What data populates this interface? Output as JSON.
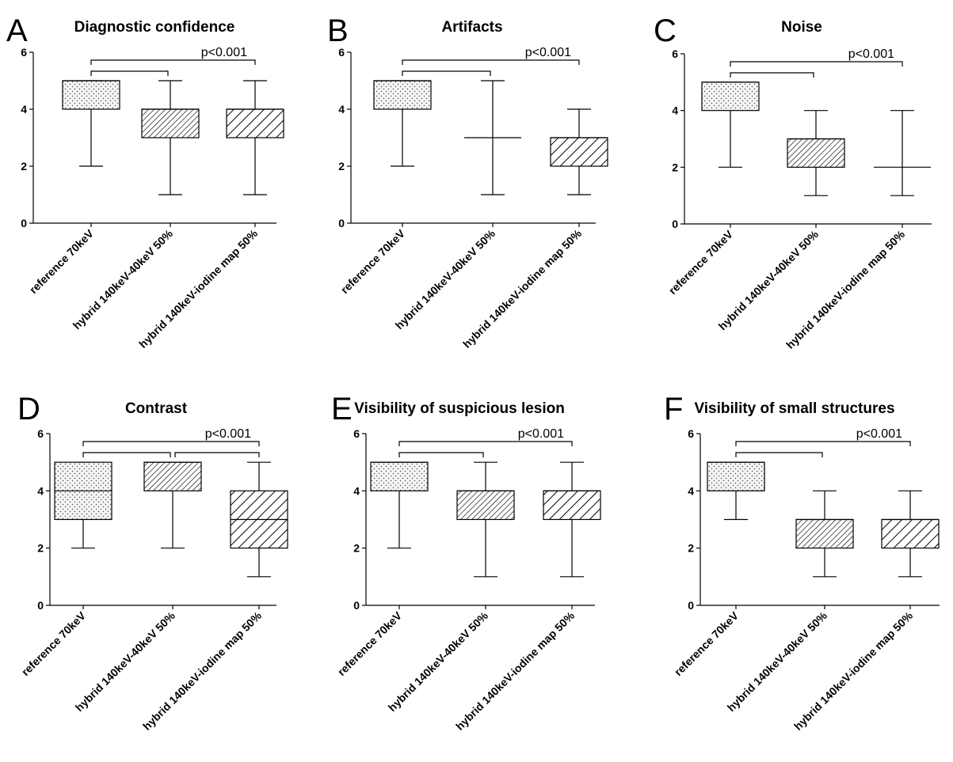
{
  "figure": {
    "categories": [
      "reference 70keV",
      "hybrid 140keV-40keV 50%",
      "hybrid 140keV-iodine map 50%"
    ],
    "pattern_legend": [
      "dots",
      "fine-hatch",
      "coarse-hatch"
    ]
  },
  "chart_data": [
    {
      "panel": "A",
      "title": "Diagnostic confidence",
      "type": "boxplot",
      "categories": [
        "reference 70keV",
        "hybrid 140keV-40keV 50%",
        "hybrid 140keV-iodine map 50%"
      ],
      "ylim": [
        0,
        6
      ],
      "yticks": [
        0,
        2,
        4,
        6
      ],
      "grid": false,
      "boxes": [
        {
          "min": 2,
          "q1": 4,
          "median": 5,
          "q3": 5,
          "max": 5
        },
        {
          "min": 1,
          "q1": 3,
          "median": 4,
          "q3": 4,
          "max": 5
        },
        {
          "min": 1,
          "q1": 3,
          "median": 4,
          "q3": 4,
          "max": 5
        }
      ],
      "brackets": [
        {
          "from": 0,
          "to": 1,
          "label": ""
        },
        {
          "from": 0,
          "to": 2,
          "label": "p<0.001"
        }
      ]
    },
    {
      "panel": "B",
      "title": "Artifacts",
      "type": "boxplot",
      "categories": [
        "reference 70keV",
        "hybrid 140keV-40keV 50%",
        "hybrid 140keV-iodine map 50%"
      ],
      "ylim": [
        0,
        6
      ],
      "yticks": [
        0,
        2,
        4,
        6
      ],
      "grid": false,
      "boxes": [
        {
          "min": 2,
          "q1": 4,
          "median": 5,
          "q3": 5,
          "max": 5
        },
        {
          "min": 1,
          "q1": 3,
          "median": 3,
          "q3": 3,
          "max": 5
        },
        {
          "min": 1,
          "q1": 2,
          "median": 3,
          "q3": 3,
          "max": 4
        }
      ],
      "brackets": [
        {
          "from": 0,
          "to": 1,
          "label": ""
        },
        {
          "from": 0,
          "to": 2,
          "label": "p<0.001"
        }
      ]
    },
    {
      "panel": "C",
      "title": "Noise",
      "type": "boxplot",
      "categories": [
        "reference 70keV",
        "hybrid 140keV-40keV 50%",
        "hybrid 140keV-iodine map 50%"
      ],
      "ylim": [
        0,
        6
      ],
      "yticks": [
        0,
        2,
        4,
        6
      ],
      "grid": false,
      "boxes": [
        {
          "min": 2,
          "q1": 4,
          "median": 5,
          "q3": 5,
          "max": 5
        },
        {
          "min": 1,
          "q1": 2,
          "median": 3,
          "q3": 3,
          "max": 4
        },
        {
          "min": 1,
          "q1": 2,
          "median": 2,
          "q3": 2,
          "max": 4
        }
      ],
      "brackets": [
        {
          "from": 0,
          "to": 1,
          "label": ""
        },
        {
          "from": 0,
          "to": 2,
          "label": "p<0.001"
        }
      ]
    },
    {
      "panel": "D",
      "title": "Contrast",
      "type": "boxplot",
      "categories": [
        "reference 70keV",
        "hybrid 140keV-40keV 50%",
        "hybrid 140keV-iodine map 50%"
      ],
      "ylim": [
        0,
        6
      ],
      "yticks": [
        0,
        2,
        4,
        6
      ],
      "grid": false,
      "boxes": [
        {
          "min": 2,
          "q1": 3,
          "median": 4,
          "q3": 5,
          "max": 5
        },
        {
          "min": 2,
          "q1": 4,
          "median": 5,
          "q3": 5,
          "max": 5
        },
        {
          "min": 1,
          "q1": 2,
          "median": 3,
          "q3": 4,
          "max": 5
        }
      ],
      "brackets": [
        {
          "from": 0,
          "to": 1,
          "label": ""
        },
        {
          "from": 1,
          "to": 2,
          "label": ""
        },
        {
          "from": 0,
          "to": 2,
          "label": "p<0.001"
        }
      ]
    },
    {
      "panel": "E",
      "title": "Visibility of suspicious lesion",
      "type": "boxplot",
      "categories": [
        "reference 70keV",
        "hybrid 140keV-40keV 50%",
        "hybrid 140keV-iodine map 50%"
      ],
      "ylim": [
        0,
        6
      ],
      "yticks": [
        0,
        2,
        4,
        6
      ],
      "grid": false,
      "boxes": [
        {
          "min": 2,
          "q1": 4,
          "median": 5,
          "q3": 5,
          "max": 5
        },
        {
          "min": 1,
          "q1": 3,
          "median": 4,
          "q3": 4,
          "max": 5
        },
        {
          "min": 1,
          "q1": 3,
          "median": 4,
          "q3": 4,
          "max": 5
        }
      ],
      "brackets": [
        {
          "from": 0,
          "to": 1,
          "label": ""
        },
        {
          "from": 0,
          "to": 2,
          "label": "p<0.001"
        }
      ]
    },
    {
      "panel": "F",
      "title": "Visibility of small structures",
      "type": "boxplot",
      "categories": [
        "reference 70keV",
        "hybrid 140keV-40keV 50%",
        "hybrid 140keV-iodine map 50%"
      ],
      "ylim": [
        0,
        6
      ],
      "yticks": [
        0,
        2,
        4,
        6
      ],
      "grid": false,
      "boxes": [
        {
          "min": 3,
          "q1": 4,
          "median": 5,
          "q3": 5,
          "max": 5
        },
        {
          "min": 1,
          "q1": 2,
          "median": 3,
          "q3": 3,
          "max": 4
        },
        {
          "min": 1,
          "q1": 2,
          "median": 3,
          "q3": 3,
          "max": 4
        }
      ],
      "brackets": [
        {
          "from": 0,
          "to": 1,
          "label": ""
        },
        {
          "from": 0,
          "to": 2,
          "label": "p<0.001"
        }
      ]
    }
  ]
}
